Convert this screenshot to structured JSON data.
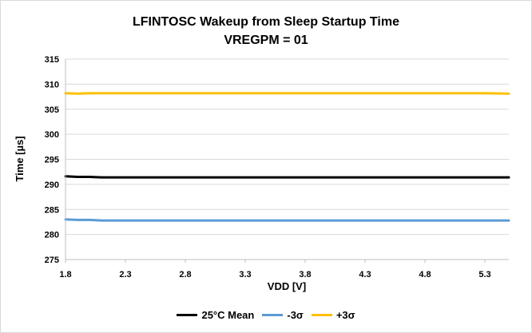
{
  "chart_data": {
    "type": "line",
    "title": "LFINTOSC Wakeup from Sleep Startup Time",
    "subtitle": "VREGPM = 01",
    "xlabel": "VDD [V]",
    "ylabel": "Time [µs]",
    "xlim": [
      1.8,
      5.5
    ],
    "ylim": [
      275,
      315
    ],
    "x_ticks": [
      1.8,
      2.3,
      2.8,
      3.3,
      3.8,
      4.3,
      4.8,
      5.3
    ],
    "x_tick_labels": [
      "1.8",
      "2.3",
      "2.8",
      "3.3",
      "3.8",
      "4.3",
      "4.8",
      "5.3"
    ],
    "y_ticks": [
      275,
      280,
      285,
      290,
      295,
      300,
      305,
      310,
      315
    ],
    "y_tick_labels": [
      "275",
      "280",
      "285",
      "290",
      "295",
      "300",
      "305",
      "310",
      "315"
    ],
    "grid": "horizontal",
    "legend_position": "bottom",
    "x": [
      1.8,
      1.9,
      2.0,
      2.1,
      2.2,
      2.3,
      2.5,
      2.8,
      3.0,
      3.3,
      3.5,
      3.8,
      4.0,
      4.3,
      4.5,
      4.8,
      5.0,
      5.3,
      5.5
    ],
    "series": [
      {
        "name": "25°C Mean",
        "color": "#000000",
        "values": [
          291.6,
          291.5,
          291.5,
          291.4,
          291.4,
          291.4,
          291.4,
          291.4,
          291.4,
          291.4,
          291.4,
          291.4,
          291.4,
          291.4,
          291.4,
          291.4,
          291.4,
          291.4,
          291.4
        ]
      },
      {
        "name": "-3σ",
        "color": "#5b9bd5",
        "values": [
          283.0,
          282.9,
          282.9,
          282.8,
          282.8,
          282.8,
          282.8,
          282.8,
          282.8,
          282.8,
          282.8,
          282.8,
          282.8,
          282.8,
          282.8,
          282.8,
          282.8,
          282.8,
          282.8
        ]
      },
      {
        "name": "+3σ",
        "color": "#ffc000",
        "values": [
          308.2,
          308.1,
          308.2,
          308.2,
          308.2,
          308.2,
          308.2,
          308.2,
          308.2,
          308.2,
          308.2,
          308.2,
          308.2,
          308.2,
          308.2,
          308.2,
          308.2,
          308.2,
          308.1
        ]
      }
    ]
  }
}
